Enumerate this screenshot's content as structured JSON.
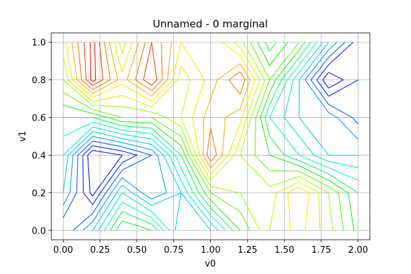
{
  "chart_data": {
    "type": "contour",
    "title": "Unnamed - 0 marginal",
    "xlabel": "v0",
    "ylabel": "v1",
    "xlim": [
      -0.08,
      2.08
    ],
    "ylim": [
      -0.05,
      1.05
    ],
    "xticks": [
      0.0,
      0.25,
      0.5,
      0.75,
      1.0,
      1.25,
      1.5,
      1.75,
      2.0
    ],
    "xtick_labels": [
      "0.00",
      "0.25",
      "0.50",
      "0.75",
      "1.00",
      "1.25",
      "1.50",
      "1.75",
      "2.00"
    ],
    "yticks": [
      0.0,
      0.2,
      0.4,
      0.6,
      0.8,
      1.0
    ],
    "ytick_labels": [
      "0.0",
      "0.2",
      "0.4",
      "0.6",
      "0.8",
      "1.0"
    ],
    "grid": true,
    "colormap": "hsv-like (blue-cyan-green-yellow-orange-red)",
    "grid_x": [
      0.0,
      0.2,
      0.4,
      0.6,
      0.8,
      1.0,
      1.2,
      1.4,
      1.6,
      1.8,
      2.0
    ],
    "grid_y": [
      0.0,
      0.2,
      0.4,
      0.6,
      0.8,
      1.0
    ],
    "z_values": [
      [
        0.15,
        0.3,
        0.55,
        0.5,
        0.25,
        0.3,
        0.5,
        0.65,
        0.72,
        0.62,
        0.48
      ],
      [
        0.3,
        0.08,
        0.35,
        0.2,
        0.3,
        0.55,
        0.6,
        0.62,
        0.75,
        0.6,
        0.45
      ],
      [
        0.35,
        0.05,
        0.1,
        0.2,
        0.45,
        0.85,
        0.6,
        0.5,
        0.4,
        0.3,
        0.3
      ],
      [
        0.45,
        0.45,
        0.55,
        0.55,
        0.65,
        0.78,
        0.72,
        0.4,
        0.3,
        0.28,
        0.18
      ],
      [
        0.6,
        0.92,
        0.72,
        0.9,
        0.62,
        0.72,
        0.85,
        0.55,
        0.3,
        0.05,
        0.15
      ],
      [
        0.68,
        0.92,
        0.62,
        0.85,
        0.7,
        0.75,
        0.62,
        0.42,
        0.55,
        0.3,
        0.12
      ]
    ],
    "levels": [
      0.05,
      0.1,
      0.15,
      0.2,
      0.25,
      0.3,
      0.35,
      0.4,
      0.45,
      0.5,
      0.55,
      0.6,
      0.65,
      0.7,
      0.75,
      0.8,
      0.85,
      0.9
    ]
  }
}
